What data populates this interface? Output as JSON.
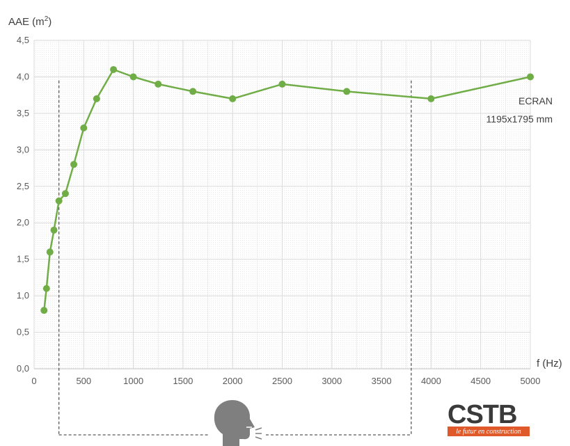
{
  "chart_data": {
    "type": "line",
    "ylabel_prefix": "AAE (m",
    "ylabel_sup": "2",
    "ylabel_suffix": ")",
    "xlabel": "f (Hz)",
    "xlim": [
      0,
      5000
    ],
    "ylim": [
      0,
      4.5
    ],
    "x_ticks": [
      0,
      500,
      1000,
      1500,
      2000,
      2500,
      3000,
      3500,
      4000,
      4500,
      5000
    ],
    "x_tick_labels": [
      "0",
      "500",
      "1000",
      "1500",
      "2000",
      "2500",
      "3000",
      "3500",
      "4000",
      "4500",
      "5000"
    ],
    "y_ticks": [
      0,
      0.5,
      1,
      1.5,
      2,
      2.5,
      3,
      3.5,
      4,
      4.5
    ],
    "y_tick_labels": [
      "0,0",
      "0,5",
      "1,0",
      "1,5",
      "2,0",
      "2,5",
      "3,0",
      "3,5",
      "4,0",
      "4,5"
    ],
    "grid": true,
    "series": [
      {
        "color": "#70ad47",
        "x": [
          100,
          125,
          160,
          200,
          250,
          315,
          400,
          500,
          630,
          800,
          1000,
          1250,
          1600,
          2000,
          2500,
          3150,
          4000,
          5000
        ],
        "y": [
          0.8,
          1.1,
          1.6,
          1.9,
          2.3,
          2.4,
          2.8,
          3.3,
          3.7,
          4.1,
          4.0,
          3.9,
          3.8,
          3.7,
          3.9,
          3.8,
          3.7,
          4.0
        ]
      }
    ],
    "annotations": [
      "ECRAN",
      "1195x1795 mm"
    ],
    "speech_range_hz": [
      250,
      3800
    ]
  },
  "logo": {
    "name": "CSTB",
    "tagline": "le futur en construction",
    "icon": "speaking-head-icon"
  }
}
